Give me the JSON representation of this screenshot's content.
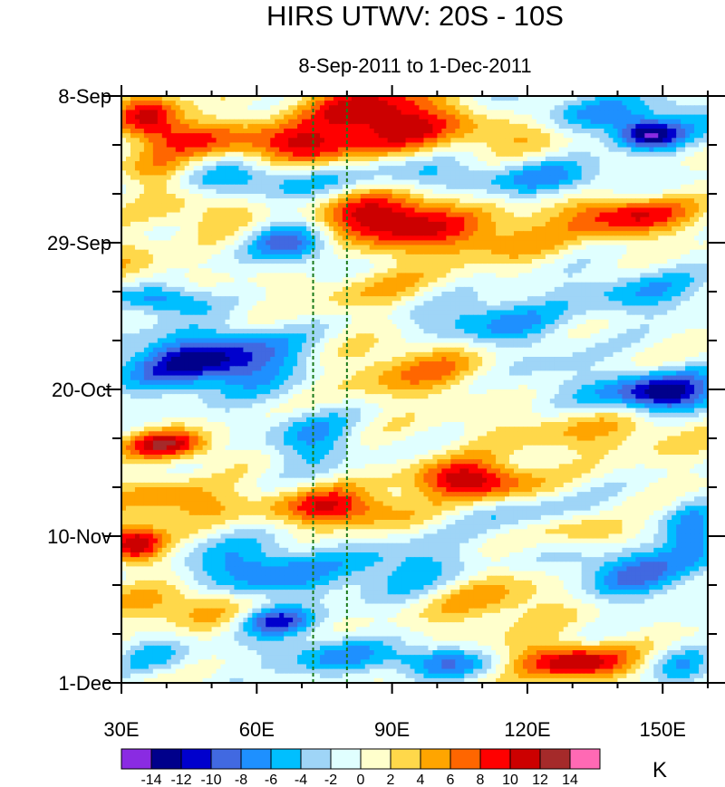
{
  "chart_data": {
    "type": "heatmap",
    "title": "HIRS UTWV: 20S - 10S",
    "subtitle": "8-Sep-2011 to 1-Dec-2011",
    "xlabel": "",
    "ylabel": "",
    "x_range": [
      30,
      160
    ],
    "x_ticks": [
      {
        "value": 30,
        "label": "30E"
      },
      {
        "value": 60,
        "label": "60E"
      },
      {
        "value": 90,
        "label": "90E"
      },
      {
        "value": 120,
        "label": "120E"
      },
      {
        "value": 150,
        "label": "150E"
      }
    ],
    "y_range_days": [
      0,
      84
    ],
    "y_ticks": [
      {
        "value": 0,
        "label": "8-Sep"
      },
      {
        "value": 21,
        "label": "29-Sep"
      },
      {
        "value": 42,
        "label": "20-Oct"
      },
      {
        "value": 63,
        "label": "10-Nov"
      },
      {
        "value": 84,
        "label": "1-Dec"
      }
    ],
    "reference_lines_lon": [
      72.5,
      80
    ],
    "reference_line_color": "#1a7a1a",
    "colorbar": {
      "unit": "K",
      "levels": [
        -14,
        -12,
        -10,
        -8,
        -6,
        -4,
        -2,
        0,
        2,
        4,
        6,
        8,
        10,
        12,
        14
      ],
      "labels": [
        "-14",
        "-12",
        "-10",
        "-8",
        "-6",
        "-4",
        "-2",
        "0",
        "2",
        "4",
        "6",
        "8",
        "10",
        "12",
        "14"
      ],
      "colors": [
        "#8a2be2",
        "#00008b",
        "#0000cd",
        "#4169e1",
        "#1e90ff",
        "#00bfff",
        "#9fd5f7",
        "#e0ffff",
        "#ffffcc",
        "#ffd84a",
        "#ffa500",
        "#ff6600",
        "#ff0000",
        "#cc0000",
        "#a52a2a",
        "#ff69b4"
      ]
    },
    "anomaly_features": [
      {
        "lon": 36,
        "day": 3,
        "amp": 10,
        "slon": 5,
        "sday": 2.5,
        "tilt": 0
      },
      {
        "lon": 88,
        "day": 3,
        "amp": 13,
        "slon": 12,
        "sday": 3.5,
        "tilt": 0.4
      },
      {
        "lon": 68,
        "day": 7,
        "amp": 9,
        "slon": 10,
        "sday": 2,
        "tilt": 0.4
      },
      {
        "lon": 45,
        "day": 6,
        "amp": 6,
        "slon": 8,
        "sday": 2,
        "tilt": 0
      },
      {
        "lon": 135,
        "day": 3,
        "amp": -6,
        "slon": 20,
        "sday": 2.5,
        "tilt": 0
      },
      {
        "lon": 147,
        "day": 5.5,
        "amp": -12,
        "slon": 5,
        "sday": 1.5,
        "tilt": 0
      },
      {
        "lon": 118,
        "day": 5,
        "amp": 6,
        "slon": 10,
        "sday": 2,
        "tilt": 0
      },
      {
        "lon": 58,
        "day": 12,
        "amp": -6,
        "slon": 14,
        "sday": 1.8,
        "tilt": 0.3
      },
      {
        "lon": 38,
        "day": 11,
        "amp": 6,
        "slon": 6,
        "sday": 2,
        "tilt": 0
      },
      {
        "lon": 95,
        "day": 11,
        "amp": -5,
        "slon": 10,
        "sday": 2,
        "tilt": 0
      },
      {
        "lon": 125,
        "day": 12,
        "amp": -6,
        "slon": 12,
        "sday": 2,
        "tilt": 0
      },
      {
        "lon": 88,
        "day": 17,
        "amp": 11,
        "slon": 9,
        "sday": 2.5,
        "tilt": -0.8
      },
      {
        "lon": 105,
        "day": 20,
        "amp": 7,
        "slon": 16,
        "sday": 2.5,
        "tilt": 0
      },
      {
        "lon": 142,
        "day": 17,
        "amp": 10,
        "slon": 10,
        "sday": 2,
        "tilt": 0
      },
      {
        "lon": 50,
        "day": 17,
        "amp": 4,
        "slon": 10,
        "sday": 2,
        "tilt": 0
      },
      {
        "lon": 68,
        "day": 21,
        "amp": -9,
        "slon": 7,
        "sday": 2.5,
        "tilt": 0.5
      },
      {
        "lon": 32,
        "day": 25,
        "amp": 4,
        "slon": 5,
        "sday": 3,
        "tilt": 0
      },
      {
        "lon": 38,
        "day": 29,
        "amp": -9,
        "slon": 7,
        "sday": 1.5,
        "tilt": 0
      },
      {
        "lon": 90,
        "day": 28,
        "amp": 4,
        "slon": 14,
        "sday": 2.5,
        "tilt": 0
      },
      {
        "lon": 110,
        "day": 32,
        "amp": -7,
        "slon": 12,
        "sday": 3,
        "tilt": 0.6
      },
      {
        "lon": 145,
        "day": 28,
        "amp": -5,
        "slon": 12,
        "sday": 2.5,
        "tilt": 0
      },
      {
        "lon": 50,
        "day": 38,
        "amp": -13,
        "slon": 14,
        "sday": 3,
        "tilt": -0.5
      },
      {
        "lon": 98,
        "day": 39,
        "amp": 6,
        "slon": 16,
        "sday": 3,
        "tilt": -0.7
      },
      {
        "lon": 150,
        "day": 42.5,
        "amp": -14,
        "slon": 9,
        "sday": 2,
        "tilt": -0.6
      },
      {
        "lon": 122,
        "day": 40,
        "amp": -4,
        "slon": 10,
        "sday": 3,
        "tilt": 0
      },
      {
        "lon": 40,
        "day": 50,
        "amp": 11,
        "slon": 7,
        "sday": 1.5,
        "tilt": 0
      },
      {
        "lon": 72,
        "day": 49,
        "amp": -6,
        "slon": 7,
        "sday": 3,
        "tilt": 0
      },
      {
        "lon": 135,
        "day": 48,
        "amp": 4,
        "slon": 18,
        "sday": 2.5,
        "tilt": 0
      },
      {
        "lon": 108,
        "day": 55,
        "amp": 12,
        "slon": 9,
        "sday": 2,
        "tilt": 0
      },
      {
        "lon": 78,
        "day": 59,
        "amp": 10,
        "slon": 10,
        "sday": 2,
        "tilt": 0
      },
      {
        "lon": 42,
        "day": 58,
        "amp": 6,
        "slon": 10,
        "sday": 2,
        "tilt": 0
      },
      {
        "lon": 33,
        "day": 64,
        "amp": 12,
        "slon": 4.5,
        "sday": 2,
        "tilt": 0
      },
      {
        "lon": 125,
        "day": 60,
        "amp": -5,
        "slon": 12,
        "sday": 2,
        "tilt": 0
      },
      {
        "lon": 133,
        "day": 62,
        "amp": 7,
        "slon": 8,
        "sday": 2,
        "tilt": 0
      },
      {
        "lon": 157,
        "day": 63,
        "amp": -7,
        "slon": 4,
        "sday": 3,
        "tilt": 0
      },
      {
        "lon": 60,
        "day": 68,
        "amp": -8,
        "slon": 10,
        "sday": 3,
        "tilt": 0
      },
      {
        "lon": 92,
        "day": 68,
        "amp": -6,
        "slon": 12,
        "sday": 3,
        "tilt": -0.5
      },
      {
        "lon": 143,
        "day": 68,
        "amp": -8,
        "slon": 10,
        "sday": 3,
        "tilt": 0
      },
      {
        "lon": 112,
        "day": 72,
        "amp": 5,
        "slon": 12,
        "sday": 3,
        "tilt": 0
      },
      {
        "lon": 45,
        "day": 73,
        "amp": 6,
        "slon": 12,
        "sday": 2,
        "tilt": 0
      },
      {
        "lon": 64,
        "day": 75,
        "amp": -10,
        "slon": 6,
        "sday": 1.5,
        "tilt": 0
      },
      {
        "lon": 75,
        "day": 80,
        "amp": -6,
        "slon": 10,
        "sday": 2,
        "tilt": 0
      },
      {
        "lon": 100,
        "day": 81,
        "amp": -8,
        "slon": 8,
        "sday": 1.5,
        "tilt": 0
      },
      {
        "lon": 130,
        "day": 81,
        "amp": 12,
        "slon": 9,
        "sday": 1.8,
        "tilt": 0
      },
      {
        "lon": 155,
        "day": 82,
        "amp": -5,
        "slon": 5,
        "sday": 2,
        "tilt": 0
      },
      {
        "lon": 38,
        "day": 80,
        "amp": -4,
        "slon": 6,
        "sday": 2,
        "tilt": 0
      }
    ]
  }
}
